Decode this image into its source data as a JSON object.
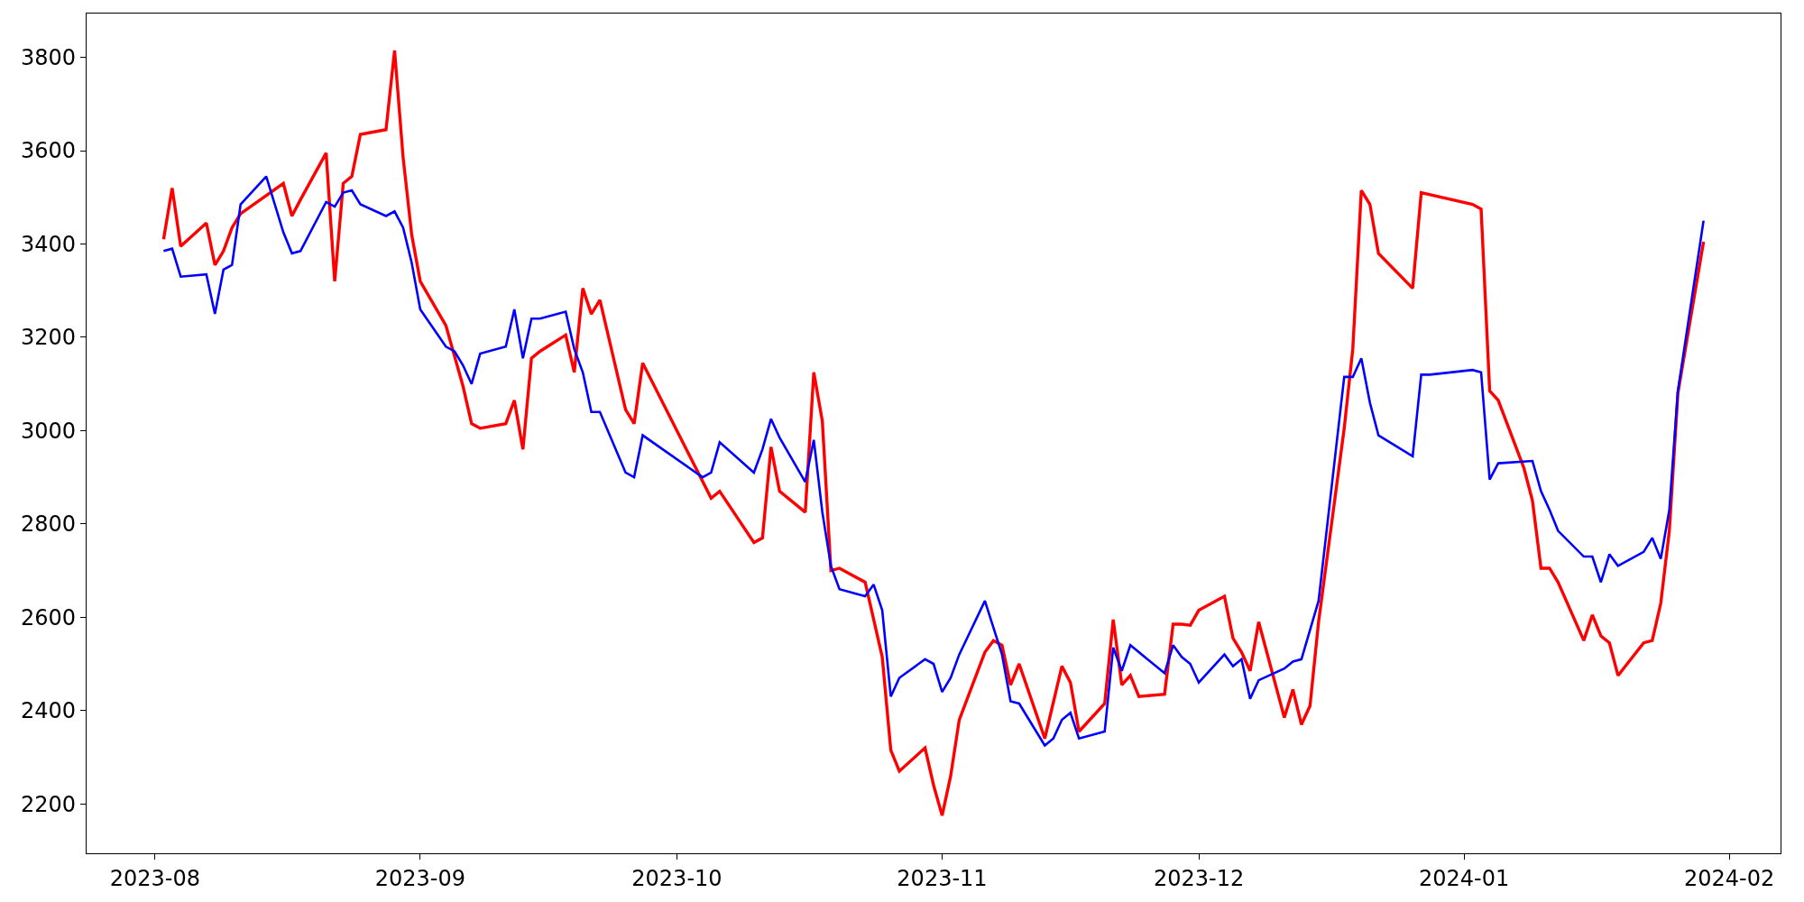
{
  "chart_data": {
    "type": "line",
    "xlim": [
      "2023-07-24",
      "2024-02-07"
    ],
    "ylim": [
      2094,
      3894
    ],
    "xticks": [
      {
        "value": "2023-08-01",
        "label": "2023-08"
      },
      {
        "value": "2023-09-01",
        "label": "2023-09"
      },
      {
        "value": "2023-10-01",
        "label": "2023-10"
      },
      {
        "value": "2023-11-01",
        "label": "2023-11"
      },
      {
        "value": "2023-12-01",
        "label": "2023-12"
      },
      {
        "value": "2024-01-01",
        "label": "2024-01"
      },
      {
        "value": "2024-02-01",
        "label": "2024-02"
      }
    ],
    "yticks": [
      2200,
      2400,
      2600,
      2800,
      3000,
      3200,
      3400,
      3600,
      3800
    ],
    "marker": "none",
    "line_style": "solid",
    "series": [
      {
        "color": "#ff0000",
        "x": [
          "2023-08-02",
          "2023-08-03",
          "2023-08-04",
          "2023-08-07",
          "2023-08-08",
          "2023-08-09",
          "2023-08-10",
          "2023-08-11",
          "2023-08-16",
          "2023-08-17",
          "2023-08-18",
          "2023-08-21",
          "2023-08-22",
          "2023-08-23",
          "2023-08-24",
          "2023-08-25",
          "2023-08-28",
          "2023-08-29",
          "2023-08-30",
          "2023-08-31",
          "2023-09-01",
          "2023-09-04",
          "2023-09-05",
          "2023-09-06",
          "2023-09-07",
          "2023-09-08",
          "2023-09-11",
          "2023-09-12",
          "2023-09-13",
          "2023-09-14",
          "2023-09-15",
          "2023-09-18",
          "2023-09-19",
          "2023-09-20",
          "2023-09-21",
          "2023-09-22",
          "2023-09-25",
          "2023-09-26",
          "2023-09-27",
          "2023-10-05",
          "2023-10-06",
          "2023-10-10",
          "2023-10-11",
          "2023-10-12",
          "2023-10-13",
          "2023-10-16",
          "2023-10-17",
          "2023-10-18",
          "2023-10-19",
          "2023-10-20",
          "2023-10-23",
          "2023-10-25",
          "2023-10-26",
          "2023-10-27",
          "2023-10-30",
          "2023-10-31",
          "2023-11-01",
          "2023-11-02",
          "2023-11-03",
          "2023-11-06",
          "2023-11-07",
          "2023-11-08",
          "2023-11-09",
          "2023-11-10",
          "2023-11-13",
          "2023-11-15",
          "2023-11-16",
          "2023-11-17",
          "2023-11-20",
          "2023-11-21",
          "2023-11-22",
          "2023-11-23",
          "2023-11-24",
          "2023-11-27",
          "2023-11-28",
          "2023-11-29",
          "2023-11-30",
          "2023-12-01",
          "2023-12-04",
          "2023-12-05",
          "2023-12-06",
          "2023-12-07",
          "2023-12-08",
          "2023-12-11",
          "2023-12-12",
          "2023-12-13",
          "2023-12-14",
          "2023-12-15",
          "2023-12-18",
          "2023-12-19",
          "2023-12-20",
          "2023-12-21",
          "2023-12-22",
          "2023-12-26",
          "2023-12-27",
          "2024-01-02",
          "2024-01-03",
          "2024-01-04",
          "2024-01-05",
          "2024-01-08",
          "2024-01-09",
          "2024-01-10",
          "2024-01-11",
          "2024-01-12",
          "2024-01-15",
          "2024-01-16",
          "2024-01-17",
          "2024-01-18",
          "2024-01-19",
          "2024-01-22",
          "2024-01-23",
          "2024-01-24",
          "2024-01-25",
          "2024-01-26",
          "2024-01-29"
        ],
        "values": [
          3410,
          3520,
          3395,
          3445,
          3355,
          3385,
          3435,
          3465,
          3530,
          3460,
          3495,
          3595,
          3320,
          3530,
          3545,
          3635,
          3645,
          3815,
          3585,
          3420,
          3320,
          3225,
          3160,
          3095,
          3015,
          3005,
          3015,
          3065,
          2960,
          3155,
          3170,
          3205,
          3125,
          3305,
          3250,
          3280,
          3045,
          3015,
          3145,
          2855,
          2870,
          2760,
          2770,
          2965,
          2870,
          2825,
          3125,
          3020,
          2700,
          2705,
          2675,
          2515,
          2315,
          2270,
          2320,
          2240,
          2175,
          2260,
          2380,
          2525,
          2550,
          2540,
          2455,
          2500,
          2340,
          2495,
          2460,
          2355,
          2415,
          2595,
          2455,
          2475,
          2430,
          2435,
          2585,
          2585,
          2583,
          2615,
          2645,
          2555,
          2525,
          2485,
          2590,
          2385,
          2445,
          2370,
          2410,
          2590,
          3005,
          3175,
          3515,
          3485,
          3380,
          3305,
          3510,
          3485,
          3475,
          3085,
          3065,
          2920,
          2850,
          2705,
          2705,
          2675,
          2550,
          2605,
          2560,
          2545,
          2475,
          2545,
          2550,
          2630,
          2785,
          3080,
          3405
        ]
      },
      {
        "color": "#0000ff",
        "x": [
          "2023-08-02",
          "2023-08-03",
          "2023-08-04",
          "2023-08-07",
          "2023-08-08",
          "2023-08-09",
          "2023-08-10",
          "2023-08-11",
          "2023-08-14",
          "2023-08-16",
          "2023-08-17",
          "2023-08-18",
          "2023-08-21",
          "2023-08-22",
          "2023-08-23",
          "2023-08-24",
          "2023-08-25",
          "2023-08-28",
          "2023-08-29",
          "2023-08-30",
          "2023-08-31",
          "2023-09-01",
          "2023-09-04",
          "2023-09-05",
          "2023-09-06",
          "2023-09-07",
          "2023-09-08",
          "2023-09-11",
          "2023-09-12",
          "2023-09-13",
          "2023-09-14",
          "2023-09-15",
          "2023-09-18",
          "2023-09-19",
          "2023-09-20",
          "2023-09-21",
          "2023-09-22",
          "2023-09-25",
          "2023-09-26",
          "2023-09-27",
          "2023-10-04",
          "2023-10-05",
          "2023-10-06",
          "2023-10-10",
          "2023-10-11",
          "2023-10-12",
          "2023-10-13",
          "2023-10-16",
          "2023-10-17",
          "2023-10-18",
          "2023-10-19",
          "2023-10-20",
          "2023-10-23",
          "2023-10-24",
          "2023-10-25",
          "2023-10-26",
          "2023-10-27",
          "2023-10-30",
          "2023-10-31",
          "2023-11-01",
          "2023-11-02",
          "2023-11-03",
          "2023-11-06",
          "2023-11-08",
          "2023-11-09",
          "2023-11-10",
          "2023-11-13",
          "2023-11-14",
          "2023-11-15",
          "2023-11-16",
          "2023-11-17",
          "2023-11-20",
          "2023-11-21",
          "2023-11-22",
          "2023-11-23",
          "2023-11-27",
          "2023-11-28",
          "2023-11-29",
          "2023-11-30",
          "2023-12-01",
          "2023-12-04",
          "2023-12-05",
          "2023-12-06",
          "2023-12-07",
          "2023-12-08",
          "2023-12-11",
          "2023-12-12",
          "2023-12-13",
          "2023-12-15",
          "2023-12-18",
          "2023-12-19",
          "2023-12-20",
          "2023-12-21",
          "2023-12-22",
          "2023-12-26",
          "2023-12-27",
          "2023-12-28",
          "2024-01-02",
          "2024-01-03",
          "2024-01-04",
          "2024-01-05",
          "2024-01-09",
          "2024-01-10",
          "2024-01-11",
          "2024-01-12",
          "2024-01-15",
          "2024-01-16",
          "2024-01-17",
          "2024-01-18",
          "2024-01-19",
          "2024-01-22",
          "2024-01-23",
          "2024-01-24",
          "2024-01-25",
          "2024-01-26",
          "2024-01-29"
        ],
        "values": [
          3385,
          3390,
          3330,
          3335,
          3250,
          3345,
          3355,
          3485,
          3545,
          3425,
          3380,
          3385,
          3490,
          3480,
          3510,
          3515,
          3485,
          3460,
          3470,
          3435,
          3360,
          3260,
          3180,
          3170,
          3140,
          3100,
          3165,
          3180,
          3260,
          3155,
          3240,
          3240,
          3255,
          3175,
          3125,
          3040,
          3040,
          2910,
          2900,
          2990,
          2900,
          2910,
          2975,
          2910,
          2960,
          3025,
          2985,
          2890,
          2980,
          2825,
          2710,
          2660,
          2645,
          2670,
          2615,
          2430,
          2470,
          2510,
          2500,
          2440,
          2470,
          2520,
          2635,
          2520,
          2420,
          2415,
          2325,
          2340,
          2380,
          2395,
          2340,
          2355,
          2535,
          2485,
          2540,
          2480,
          2540,
          2515,
          2500,
          2460,
          2520,
          2495,
          2510,
          2425,
          2465,
          2490,
          2505,
          2510,
          2635,
          3115,
          3115,
          3155,
          3060,
          2990,
          2945,
          3120,
          3120,
          3130,
          3125,
          2895,
          2930,
          2935,
          2870,
          2830,
          2785,
          2730,
          2730,
          2675,
          2735,
          2710,
          2740,
          2770,
          2725,
          2830,
          3085,
          3450
        ]
      }
    ]
  }
}
